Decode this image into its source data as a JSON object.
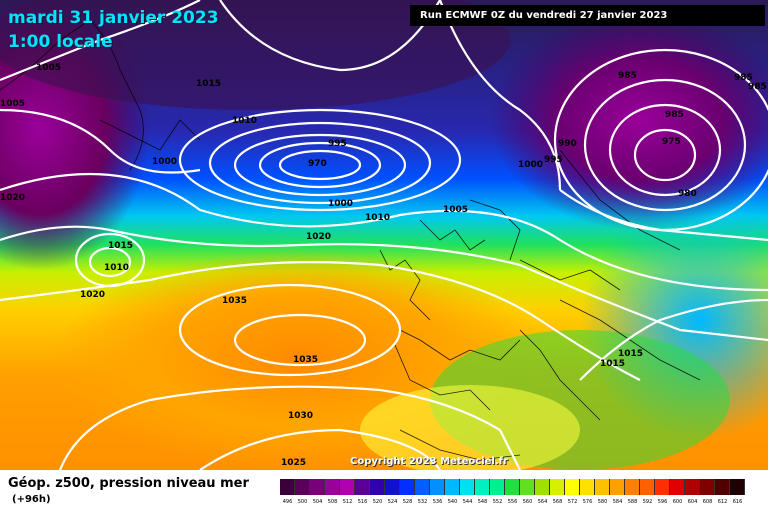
{
  "header": {
    "date": "mardi 31 janvier 2023",
    "time": "1:00 locale",
    "run": "Run ECMWF 0Z du vendredi 27 janvier 2023"
  },
  "footer": {
    "parameter": "Géop. z500, pression niveau mer",
    "lead_time": "(+96h)",
    "copyright": "Copyright 2023 Meteociel.fr"
  },
  "colorbar": {
    "levels": [
      "496",
      "500",
      "504",
      "508",
      "512",
      "516",
      "520",
      "524",
      "528",
      "532",
      "536",
      "540",
      "544",
      "548",
      "552",
      "556",
      "560",
      "564",
      "568",
      "572",
      "576",
      "580",
      "584",
      "588",
      "592",
      "596",
      "600",
      "604",
      "608",
      "612",
      "616"
    ],
    "colors": [
      "#3a003a",
      "#5a005a",
      "#7a007a",
      "#9a009a",
      "#b000b0",
      "#5a0099",
      "#3000b0",
      "#1010d0",
      "#0030ff",
      "#0060ff",
      "#0090ff",
      "#00b8ff",
      "#00e0f0",
      "#00f0c0",
      "#00f090",
      "#20e040",
      "#60e020",
      "#a0e000",
      "#d8f000",
      "#ffff00",
      "#ffe000",
      "#ffc000",
      "#ffa000",
      "#ff8000",
      "#ff6000",
      "#ff3000",
      "#e00000",
      "#b00000",
      "#800000",
      "#500000",
      "#200000"
    ]
  },
  "isobars": [
    {
      "value": "1005",
      "label": "1005"
    },
    {
      "value": "1005",
      "label": "1005"
    },
    {
      "value": "1020",
      "label": "1020"
    },
    {
      "value": "1015",
      "label": "1015"
    },
    {
      "value": "1010",
      "label": "1010"
    },
    {
      "value": "1000",
      "label": "1000"
    },
    {
      "value": "995",
      "label": "995"
    },
    {
      "value": "970",
      "label": "970"
    },
    {
      "value": "1000",
      "label": "1000"
    },
    {
      "value": "1010",
      "label": "1010"
    },
    {
      "value": "1005",
      "label": "1005"
    },
    {
      "value": "1020",
      "label": "1020"
    },
    {
      "value": "1015",
      "label": "1015"
    },
    {
      "value": "1010",
      "label": "1010"
    },
    {
      "value": "1020",
      "label": "1020"
    },
    {
      "value": "1035",
      "label": "1035"
    },
    {
      "value": "1035",
      "label": "1035"
    },
    {
      "value": "1030",
      "label": "1030"
    },
    {
      "value": "1025",
      "label": "1025"
    },
    {
      "value": "985",
      "label": "985"
    },
    {
      "value": "985",
      "label": "985"
    },
    {
      "value": "985",
      "label": "985"
    },
    {
      "value": "985",
      "label": "985"
    },
    {
      "value": "975",
      "label": "975"
    },
    {
      "value": "980",
      "label": "980"
    },
    {
      "value": "990",
      "label": "990"
    },
    {
      "value": "995",
      "label": "995"
    },
    {
      "value": "1000",
      "label": "1000"
    },
    {
      "value": "1015",
      "label": "1015"
    },
    {
      "value": "1015",
      "label": "1015"
    }
  ]
}
